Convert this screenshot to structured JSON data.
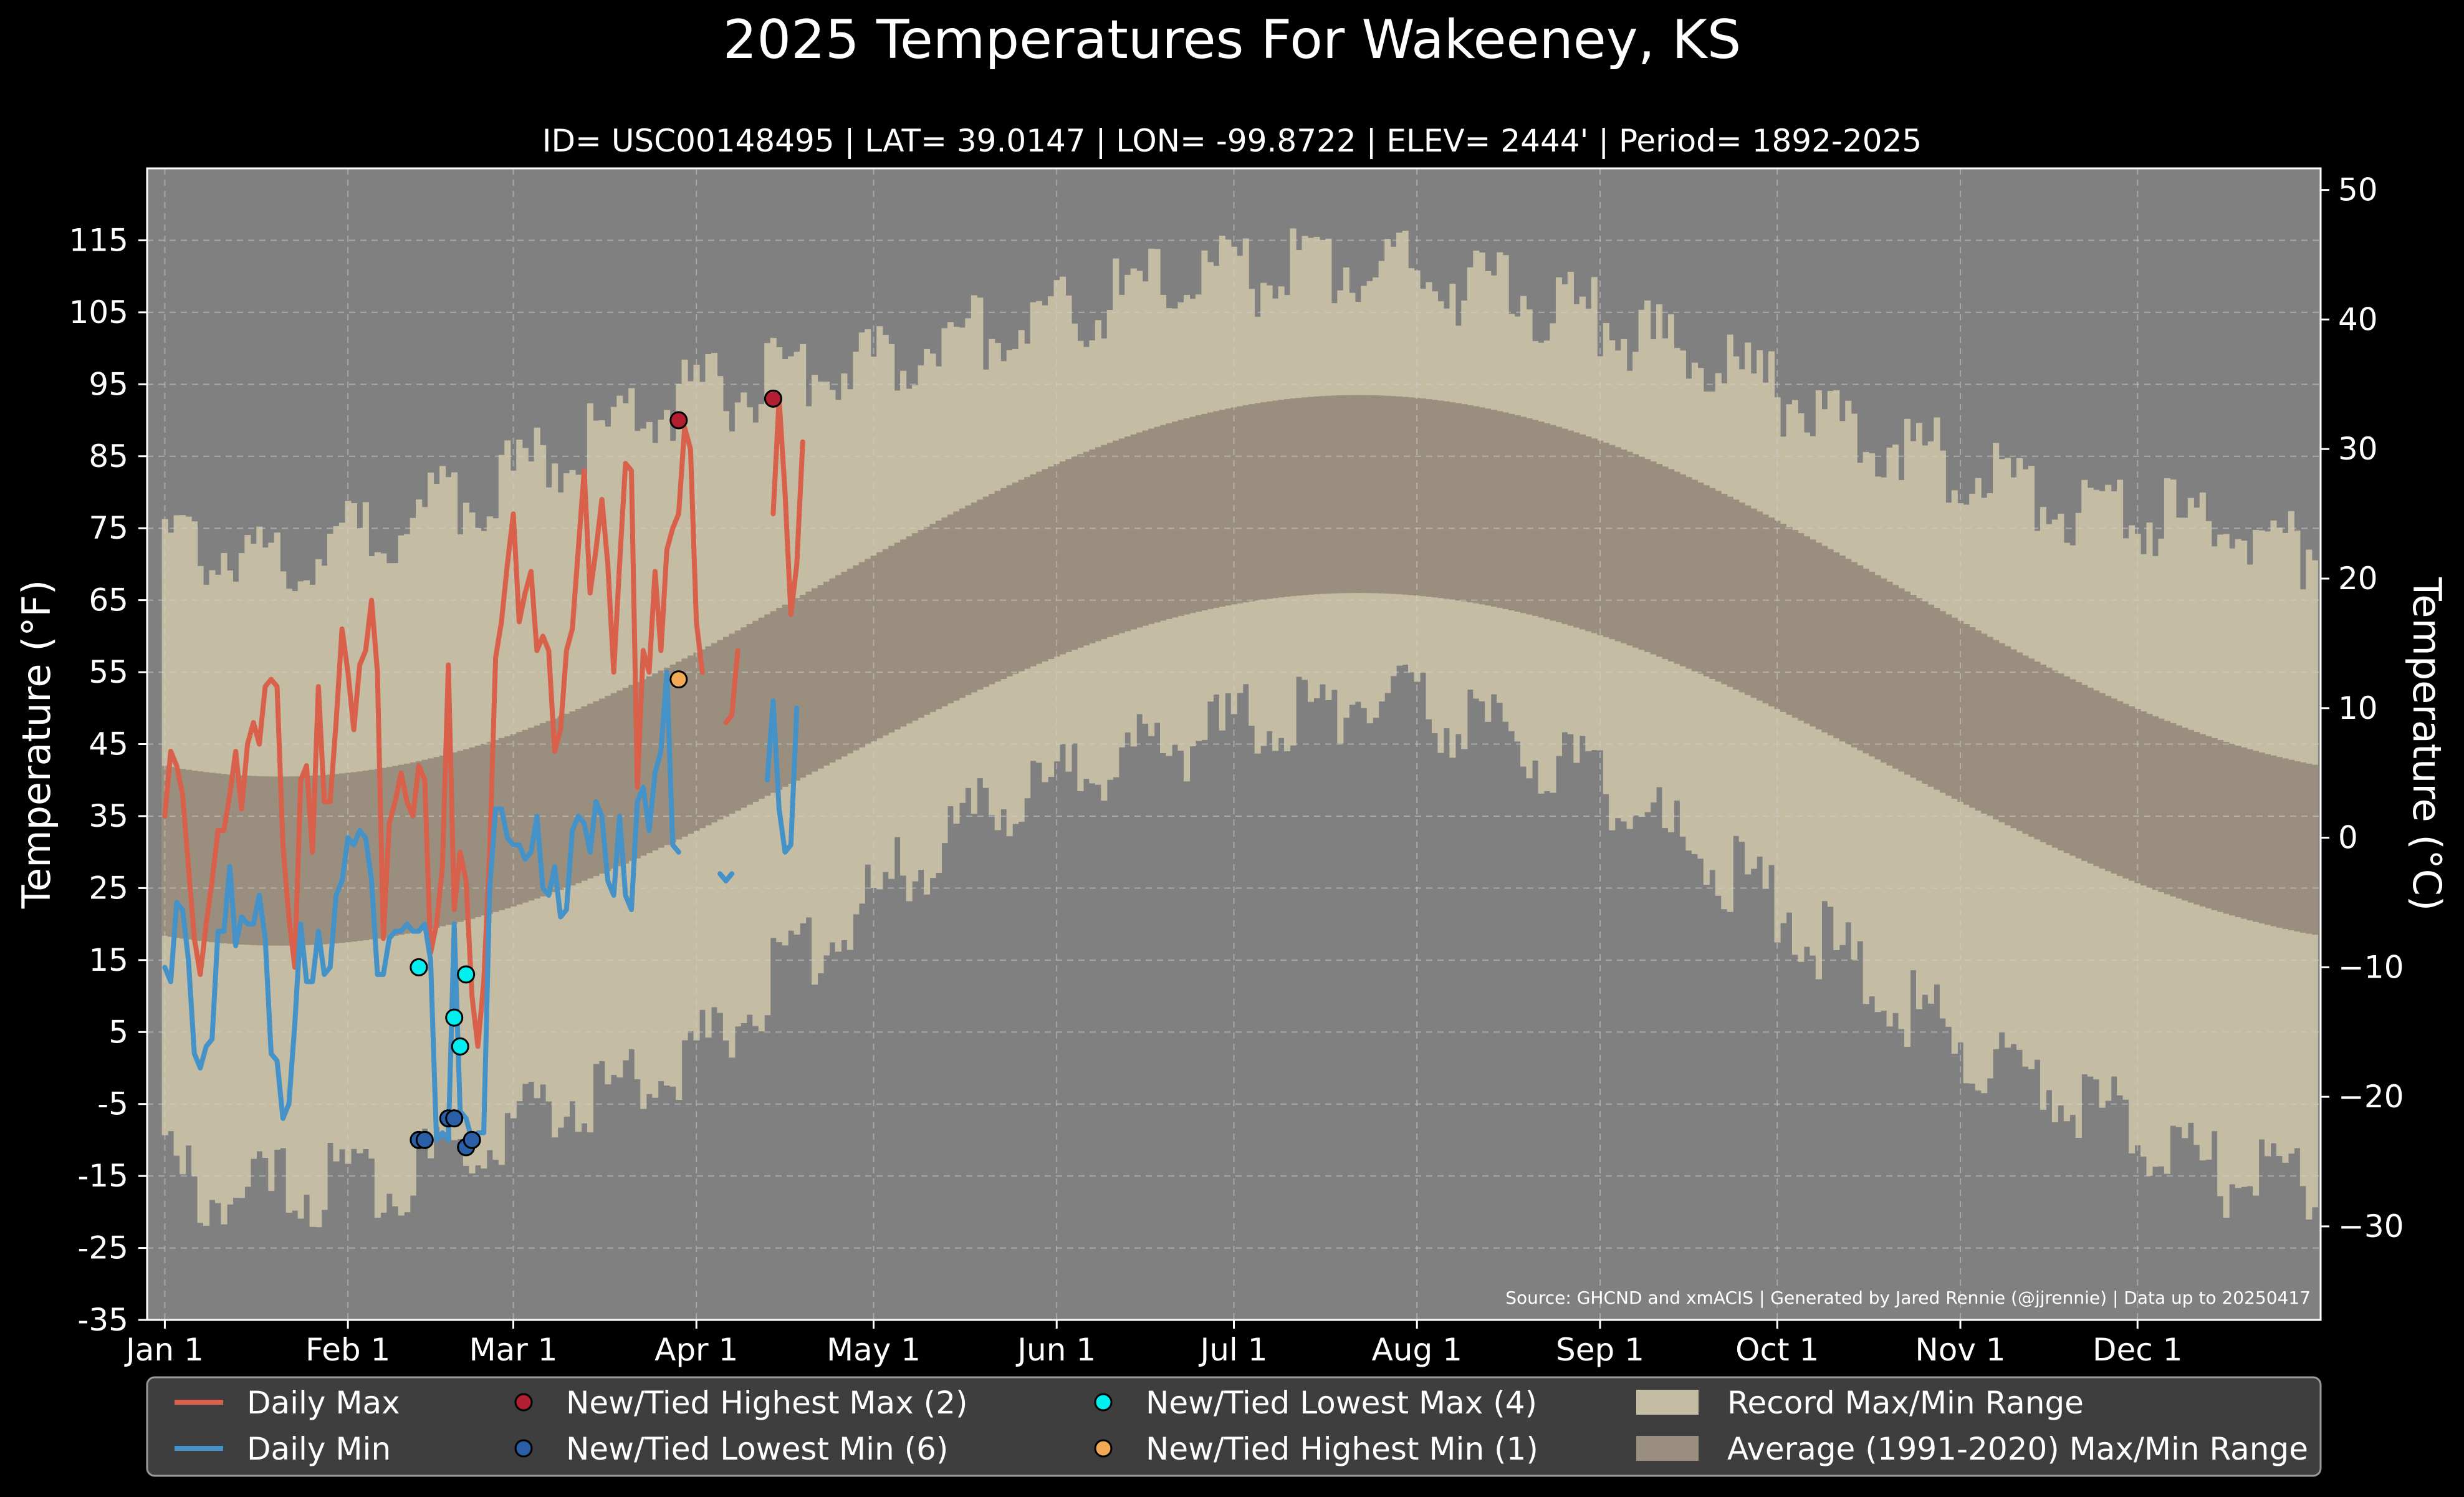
{
  "chart_data": {
    "type": "line",
    "title": "2025 Temperatures For Wakeeney, KS",
    "subtitle": "ID= USC00148495 | LAT= 39.0147 | LON= -99.8722 | ELEV= 2444' | Period= 1892-2025",
    "ylabel_left": "Temperature ($^\\circ$F)",
    "ylabel_right": "Temperature ($^\\circ$C)",
    "ylim_f": [
      -35,
      125
    ],
    "ylim_c_ticks": [
      -30,
      -20,
      -10,
      0,
      10,
      20,
      30,
      40,
      50
    ],
    "yticks_f": [
      -35,
      -25,
      -15,
      -5,
      5,
      15,
      25,
      35,
      45,
      55,
      65,
      75,
      85,
      95,
      105,
      115
    ],
    "xlim_day": [
      -3,
      365
    ],
    "xticks": [
      {
        "label": "Jan 1",
        "day": 0
      },
      {
        "label": "Feb 1",
        "day": 31
      },
      {
        "label": "Mar 1",
        "day": 59
      },
      {
        "label": "Apr 1",
        "day": 90
      },
      {
        "label": "May 1",
        "day": 120
      },
      {
        "label": "Jun 1",
        "day": 151
      },
      {
        "label": "Jul 1",
        "day": 181
      },
      {
        "label": "Aug 1",
        "day": 212
      },
      {
        "label": "Sep 1",
        "day": 243
      },
      {
        "label": "Oct 1",
        "day": 273
      },
      {
        "label": "Nov 1",
        "day": 304
      },
      {
        "label": "Dec 1",
        "day": 334
      }
    ],
    "grid": true,
    "source": "Source: GHCND and xmACIS | Generated by Jared Rennie (@jjrennie) | Data up to 20250417",
    "record_max_anchors": [
      [
        0,
        73
      ],
      [
        15,
        71
      ],
      [
        31,
        73
      ],
      [
        45,
        78
      ],
      [
        59,
        82
      ],
      [
        75,
        89
      ],
      [
        90,
        93
      ],
      [
        105,
        96
      ],
      [
        120,
        98
      ],
      [
        135,
        102
      ],
      [
        151,
        104
      ],
      [
        165,
        108
      ],
      [
        181,
        110
      ],
      [
        195,
        111
      ],
      [
        205,
        112
      ],
      [
        212,
        110
      ],
      [
        228,
        108
      ],
      [
        243,
        104
      ],
      [
        258,
        99
      ],
      [
        273,
        94
      ],
      [
        289,
        88
      ],
      [
        304,
        84
      ],
      [
        320,
        79
      ],
      [
        334,
        77
      ],
      [
        350,
        75
      ],
      [
        364,
        72
      ]
    ],
    "record_min_anchors": [
      [
        0,
        -14
      ],
      [
        10,
        -18
      ],
      [
        20,
        -17
      ],
      [
        31,
        -16
      ],
      [
        45,
        -14
      ],
      [
        59,
        -7
      ],
      [
        75,
        -3
      ],
      [
        90,
        2
      ],
      [
        105,
        14
      ],
      [
        120,
        24
      ],
      [
        135,
        33
      ],
      [
        151,
        40
      ],
      [
        165,
        44
      ],
      [
        181,
        47
      ],
      [
        195,
        50
      ],
      [
        205,
        52
      ],
      [
        212,
        50
      ],
      [
        228,
        46
      ],
      [
        243,
        39
      ],
      [
        258,
        31
      ],
      [
        273,
        23
      ],
      [
        289,
        12
      ],
      [
        304,
        4
      ],
      [
        320,
        -3
      ],
      [
        334,
        -8
      ],
      [
        350,
        -16
      ],
      [
        364,
        -15
      ]
    ],
    "average_range": {
      "max_peak": 93.5,
      "max_trough": 40.5,
      "min_peak": 66,
      "min_trough": 17,
      "peak_day": 202,
      "trough_day": 20
    },
    "series": [
      {
        "name": "Daily Max",
        "color": "#d9604a",
        "points": [
          [
            0,
            35
          ],
          [
            1,
            44
          ],
          [
            2,
            42
          ],
          [
            3,
            38
          ],
          [
            4,
            28
          ],
          [
            5,
            18
          ],
          [
            6,
            13
          ],
          [
            7,
            20
          ],
          [
            8,
            26
          ],
          [
            9,
            33
          ],
          [
            10,
            33
          ],
          [
            11,
            38
          ],
          [
            12,
            44
          ],
          [
            13,
            36
          ],
          [
            14,
            45
          ],
          [
            15,
            48
          ],
          [
            16,
            45
          ],
          [
            17,
            53
          ],
          [
            18,
            54
          ],
          [
            19,
            53
          ],
          [
            20,
            31
          ],
          [
            21,
            21
          ],
          [
            22,
            14
          ],
          [
            23,
            40
          ],
          [
            24,
            42
          ],
          [
            25,
            30
          ],
          [
            26,
            53
          ],
          [
            27,
            37
          ],
          [
            28,
            37
          ],
          [
            29,
            48
          ],
          [
            30,
            61
          ],
          [
            31,
            55
          ],
          [
            32,
            47
          ],
          [
            33,
            56
          ],
          [
            34,
            58
          ],
          [
            35,
            65
          ],
          [
            36,
            55
          ],
          [
            37,
            18
          ],
          [
            38,
            34
          ],
          [
            39,
            37
          ],
          [
            40,
            41
          ],
          [
            41,
            37
          ],
          [
            42,
            35
          ],
          [
            43,
            42
          ],
          [
            44,
            40
          ],
          [
            45,
            16
          ],
          [
            46,
            20
          ],
          [
            47,
            28
          ],
          [
            48,
            56
          ],
          [
            49,
            22
          ],
          [
            50,
            30
          ],
          [
            51,
            26
          ],
          [
            52,
            10
          ],
          [
            53,
            3
          ],
          [
            54,
            12
          ],
          [
            55,
            30
          ],
          [
            56,
            57
          ],
          [
            57,
            62
          ],
          [
            58,
            70
          ],
          [
            59,
            77
          ],
          [
            60,
            62
          ],
          [
            61,
            66
          ],
          [
            62,
            69
          ],
          [
            63,
            58
          ],
          [
            64,
            60
          ],
          [
            65,
            58
          ],
          [
            66,
            44
          ],
          [
            67,
            47
          ],
          [
            68,
            58
          ],
          [
            69,
            61
          ],
          [
            70,
            72
          ],
          [
            71,
            83
          ],
          [
            72,
            66
          ],
          [
            73,
            72
          ],
          [
            74,
            79
          ],
          [
            75,
            70
          ],
          [
            76,
            55
          ],
          [
            77,
            70
          ],
          [
            78,
            84
          ],
          [
            79,
            83
          ],
          [
            80,
            39
          ],
          [
            81,
            58
          ],
          [
            82,
            55
          ],
          [
            83,
            69
          ],
          [
            84,
            58
          ],
          [
            85,
            72
          ],
          [
            86,
            75
          ],
          [
            87,
            77
          ],
          [
            88,
            89
          ],
          [
            89,
            86
          ],
          [
            90,
            62
          ],
          [
            91,
            55
          ]
        ],
        "points_b": [
          [
            95,
            48
          ],
          [
            96,
            49
          ],
          [
            97,
            58
          ]
        ],
        "points_c": [
          [
            103,
            77
          ],
          [
            104,
            93
          ],
          [
            105,
            80
          ],
          [
            106,
            63
          ],
          [
            107,
            70
          ],
          [
            108,
            87
          ]
        ]
      },
      {
        "name": "Daily Min",
        "color": "#4592c9",
        "points": [
          [
            0,
            14
          ],
          [
            1,
            12
          ],
          [
            2,
            23
          ],
          [
            3,
            22
          ],
          [
            4,
            15
          ],
          [
            5,
            2
          ],
          [
            6,
            0
          ],
          [
            7,
            3
          ],
          [
            8,
            4
          ],
          [
            9,
            19
          ],
          [
            10,
            19
          ],
          [
            11,
            28
          ],
          [
            12,
            17
          ],
          [
            13,
            21
          ],
          [
            14,
            20
          ],
          [
            15,
            20
          ],
          [
            16,
            24
          ],
          [
            17,
            18
          ],
          [
            18,
            2
          ],
          [
            19,
            1
          ],
          [
            20,
            -7
          ],
          [
            21,
            -5
          ],
          [
            22,
            6
          ],
          [
            23,
            20
          ],
          [
            24,
            12
          ],
          [
            25,
            12
          ],
          [
            26,
            19
          ],
          [
            27,
            13
          ],
          [
            28,
            14
          ],
          [
            29,
            24
          ],
          [
            30,
            26
          ],
          [
            31,
            32
          ],
          [
            32,
            31
          ],
          [
            33,
            33
          ],
          [
            34,
            32
          ],
          [
            35,
            26
          ],
          [
            36,
            13
          ],
          [
            37,
            13
          ],
          [
            38,
            18
          ],
          [
            39,
            19
          ],
          [
            40,
            19
          ],
          [
            41,
            20
          ],
          [
            42,
            19
          ],
          [
            43,
            19
          ],
          [
            44,
            20
          ],
          [
            45,
            15
          ],
          [
            46,
            -10
          ],
          [
            47,
            -9
          ],
          [
            48,
            -10
          ],
          [
            49,
            20
          ],
          [
            50,
            -6
          ],
          [
            51,
            -7
          ],
          [
            52,
            -10
          ],
          [
            53,
            -9
          ],
          [
            54,
            -9
          ],
          [
            55,
            25
          ],
          [
            56,
            36
          ],
          [
            57,
            36
          ],
          [
            58,
            32
          ],
          [
            59,
            31
          ],
          [
            60,
            31
          ],
          [
            61,
            29
          ],
          [
            62,
            30
          ],
          [
            63,
            35
          ],
          [
            64,
            25
          ],
          [
            65,
            24
          ],
          [
            66,
            28
          ],
          [
            67,
            21
          ],
          [
            68,
            22
          ],
          [
            69,
            33
          ],
          [
            70,
            35
          ],
          [
            71,
            34
          ],
          [
            72,
            30
          ],
          [
            73,
            37
          ],
          [
            74,
            35
          ],
          [
            75,
            26
          ],
          [
            76,
            24
          ],
          [
            77,
            35
          ],
          [
            78,
            24
          ],
          [
            79,
            22
          ],
          [
            80,
            37
          ],
          [
            81,
            39
          ],
          [
            82,
            33
          ],
          [
            83,
            41
          ],
          [
            84,
            44
          ],
          [
            85,
            55
          ],
          [
            86,
            31
          ],
          [
            87,
            30
          ]
        ],
        "points_b": [
          [
            94,
            27
          ],
          [
            95,
            26
          ],
          [
            96,
            27
          ]
        ],
        "points_c": [
          [
            102,
            40
          ],
          [
            103,
            51
          ],
          [
            104,
            36
          ],
          [
            105,
            30
          ],
          [
            106,
            31
          ],
          [
            107,
            50
          ]
        ]
      }
    ],
    "markers": [
      {
        "name": "New/Tied Highest Max (2)",
        "color": "#b21e32",
        "points": [
          [
            87,
            90
          ],
          [
            103,
            93
          ]
        ]
      },
      {
        "name": "New/Tied Lowest Min (6)",
        "color": "#2a5fa8",
        "points": [
          [
            43,
            -10
          ],
          [
            44,
            -10
          ],
          [
            48,
            -7
          ],
          [
            49,
            -7
          ],
          [
            51,
            -11
          ],
          [
            52,
            -10
          ]
        ]
      },
      {
        "name": "New/Tied Lowest Max (4)",
        "color": "#00f0f0",
        "points": [
          [
            43,
            14
          ],
          [
            49,
            7
          ],
          [
            50,
            3
          ],
          [
            51,
            13
          ]
        ]
      },
      {
        "name": "New/Tied Highest Min (1)",
        "color": "#f2aa55",
        "points": [
          [
            87,
            54
          ]
        ]
      }
    ],
    "legend": {
      "placement": "bottom",
      "entries": [
        {
          "label": "Daily Max",
          "kind": "line",
          "color": "#d9604a"
        },
        {
          "label": "Daily Min",
          "kind": "line",
          "color": "#4592c9"
        },
        {
          "label": "New/Tied Highest Max (2)",
          "kind": "marker",
          "color": "#b21e32"
        },
        {
          "label": "New/Tied Lowest Min (6)",
          "kind": "marker",
          "color": "#2a5fa8"
        },
        {
          "label": "New/Tied Lowest Max (4)",
          "kind": "marker",
          "color": "#00f0f0"
        },
        {
          "label": "New/Tied Highest Min (1)",
          "kind": "marker",
          "color": "#f2aa55"
        },
        {
          "label": "Record Max/Min Range",
          "kind": "patch",
          "color": "#c5bca4"
        },
        {
          "label": "Average (1991-2020) Max/Min Range",
          "kind": "patch",
          "color": "#9a8f7e"
        }
      ]
    },
    "colors": {
      "background": "#000000",
      "plot_background": "#808080",
      "record_range": "#c5bca4",
      "average_range": "#9a8f7e"
    }
  }
}
